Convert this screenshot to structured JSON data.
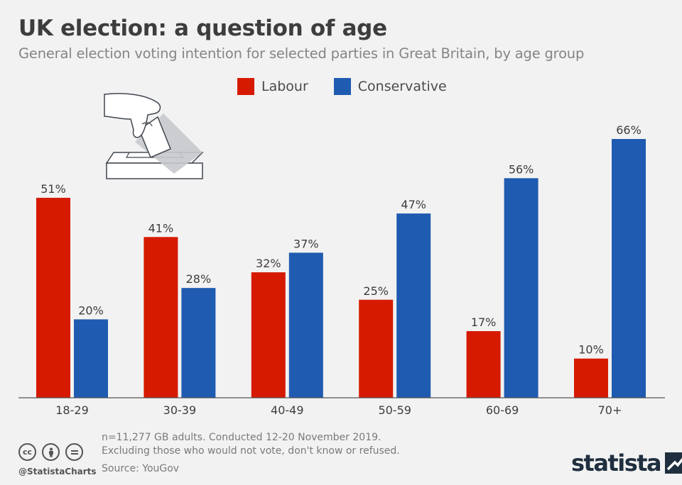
{
  "header": {
    "title": "UK election: a question of age",
    "subtitle": "General election voting intention for selected parties in Great Britain, by age group"
  },
  "legend": [
    {
      "label": "Labour",
      "color": "#d61a00"
    },
    {
      "label": "Conservative",
      "color": "#1f5bb0"
    }
  ],
  "chart_data": {
    "type": "bar",
    "title": "UK election: a question of age",
    "subtitle": "General election voting intention for selected parties in Great Britain, by age group",
    "categories": [
      "18-29",
      "30-39",
      "40-49",
      "50-59",
      "60-69",
      "70+"
    ],
    "series": [
      {
        "name": "Labour",
        "color": "#d61a00",
        "values": [
          51,
          41,
          32,
          25,
          17,
          10
        ],
        "labels": [
          "51%",
          "41%",
          "32%",
          "25%",
          "17%",
          "10%"
        ]
      },
      {
        "name": "Conservative",
        "color": "#1f5bb0",
        "values": [
          20,
          28,
          37,
          47,
          56,
          66
        ],
        "labels": [
          "20%",
          "28%",
          "37%",
          "47%",
          "56%",
          "66%"
        ]
      }
    ],
    "xlabel": "",
    "ylabel": "",
    "ylim": [
      0,
      70
    ],
    "grid": false,
    "legend_position": "top-center"
  },
  "footer": {
    "note_line1": "n=11,277 GB adults. Conducted 12-20 November 2019.",
    "note_line2": "Excluding those who would not vote, don't know or refused.",
    "source": "Source: YouGov",
    "handle": "@StatistaCharts",
    "logo": "statista"
  },
  "icons": [
    "ballot-box-icon",
    "cc-icon",
    "attribution-icon",
    "no-derivatives-icon",
    "statista-logo-mark-icon"
  ]
}
